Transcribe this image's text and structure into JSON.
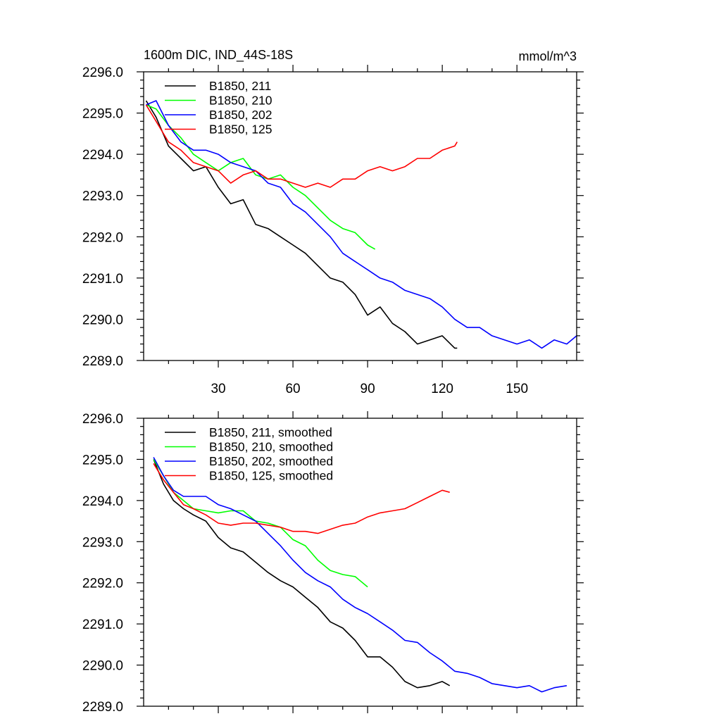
{
  "header": {
    "title": "1600m DIC, IND_44S-18S",
    "units": "mmol/m^3"
  },
  "chart_data": [
    {
      "type": "line",
      "xlim": [
        0,
        174
      ],
      "ylim": [
        2289.0,
        2296.0
      ],
      "x_ticks": [
        30,
        60,
        90,
        120,
        150
      ],
      "x_tick_labels": [
        "30",
        "60",
        "90",
        "120",
        "150"
      ],
      "y_ticks": [
        2289.0,
        2290.0,
        2291.0,
        2292.0,
        2293.0,
        2294.0,
        2295.0,
        2296.0
      ],
      "y_tick_labels": [
        "2289.0",
        "2290.0",
        "2291.0",
        "2292.0",
        "2293.0",
        "2294.0",
        "2295.0",
        "2296.0"
      ],
      "legend_position": "top-left",
      "series": [
        {
          "name": "B1850, 211",
          "color": "#000000",
          "x": [
            1,
            5,
            10,
            15,
            20,
            25,
            30,
            35,
            40,
            45,
            50,
            55,
            60,
            65,
            70,
            75,
            80,
            85,
            90,
            95,
            100,
            105,
            110,
            115,
            120,
            125,
            126
          ],
          "y": [
            2295.3,
            2294.9,
            2294.2,
            2293.9,
            2293.6,
            2293.7,
            2293.2,
            2292.8,
            2292.9,
            2292.3,
            2292.2,
            2292.0,
            2291.8,
            2291.6,
            2291.3,
            2291.0,
            2290.9,
            2290.6,
            2290.1,
            2290.3,
            2289.9,
            2289.7,
            2289.4,
            2289.5,
            2289.6,
            2289.3,
            2289.3
          ]
        },
        {
          "name": "B1850, 210",
          "color": "#00ff00",
          "x": [
            1,
            5,
            10,
            15,
            20,
            25,
            30,
            35,
            40,
            45,
            50,
            55,
            60,
            65,
            70,
            75,
            80,
            85,
            90,
            93
          ],
          "y": [
            2295.2,
            2295.1,
            2294.7,
            2294.4,
            2294.0,
            2293.8,
            2293.6,
            2293.8,
            2293.9,
            2293.5,
            2293.4,
            2293.5,
            2293.2,
            2293.0,
            2292.7,
            2292.4,
            2292.2,
            2292.1,
            2291.8,
            2291.7
          ]
        },
        {
          "name": "B1850, 202",
          "color": "#0000ff",
          "x": [
            1,
            5,
            10,
            15,
            20,
            25,
            30,
            35,
            40,
            45,
            50,
            55,
            60,
            65,
            70,
            75,
            80,
            85,
            90,
            95,
            100,
            105,
            110,
            115,
            120,
            125,
            130,
            135,
            140,
            145,
            150,
            155,
            160,
            165,
            170,
            174
          ],
          "y": [
            2295.2,
            2295.3,
            2294.7,
            2294.3,
            2294.1,
            2294.1,
            2294.0,
            2293.8,
            2293.7,
            2293.6,
            2293.3,
            2293.2,
            2292.8,
            2292.6,
            2292.3,
            2292.0,
            2291.6,
            2291.4,
            2291.2,
            2291.0,
            2290.9,
            2290.7,
            2290.6,
            2290.5,
            2290.3,
            2290.0,
            2289.8,
            2289.8,
            2289.6,
            2289.5,
            2289.4,
            2289.5,
            2289.3,
            2289.5,
            2289.4,
            2289.6
          ]
        },
        {
          "name": "B1850, 125",
          "color": "#ff0000",
          "x": [
            1,
            5,
            10,
            15,
            20,
            25,
            30,
            35,
            40,
            45,
            50,
            55,
            60,
            65,
            70,
            75,
            80,
            85,
            90,
            95,
            100,
            105,
            110,
            115,
            120,
            125,
            126
          ],
          "y": [
            2295.2,
            2294.8,
            2294.3,
            2294.1,
            2293.8,
            2293.7,
            2293.6,
            2293.3,
            2293.5,
            2293.6,
            2293.4,
            2293.4,
            2293.3,
            2293.2,
            2293.3,
            2293.2,
            2293.4,
            2293.4,
            2293.6,
            2293.7,
            2293.6,
            2293.7,
            2293.9,
            2293.9,
            2294.1,
            2294.2,
            2294.3
          ]
        }
      ]
    },
    {
      "type": "line",
      "xlim": [
        0,
        174
      ],
      "ylim": [
        2289.0,
        2296.0
      ],
      "y_ticks": [
        2289.0,
        2290.0,
        2291.0,
        2292.0,
        2293.0,
        2294.0,
        2295.0,
        2296.0
      ],
      "y_tick_labels": [
        "2289.0",
        "2290.0",
        "2291.0",
        "2292.0",
        "2293.0",
        "2294.0",
        "2295.0",
        "2296.0"
      ],
      "legend_position": "top-left",
      "series": [
        {
          "name": "B1850, 211, smoothed",
          "color": "#000000",
          "x": [
            4,
            8,
            12,
            16,
            20,
            25,
            30,
            35,
            40,
            45,
            50,
            55,
            60,
            65,
            70,
            75,
            80,
            85,
            90,
            95,
            100,
            105,
            110,
            115,
            120,
            123
          ],
          "y": [
            2295.0,
            2294.4,
            2294.0,
            2293.8,
            2293.65,
            2293.5,
            2293.1,
            2292.85,
            2292.75,
            2292.5,
            2292.25,
            2292.05,
            2291.9,
            2291.65,
            2291.4,
            2291.05,
            2290.9,
            2290.6,
            2290.2,
            2290.2,
            2289.95,
            2289.6,
            2289.45,
            2289.5,
            2289.6,
            2289.5
          ]
        },
        {
          "name": "B1850, 210, smoothed",
          "color": "#00ff00",
          "x": [
            4,
            8,
            12,
            16,
            20,
            25,
            30,
            35,
            40,
            45,
            50,
            55,
            60,
            65,
            70,
            75,
            80,
            85,
            90
          ],
          "y": [
            2295.0,
            2294.6,
            2294.2,
            2294.0,
            2293.8,
            2293.75,
            2293.7,
            2293.75,
            2293.75,
            2293.5,
            2293.45,
            2293.35,
            2293.05,
            2292.9,
            2292.55,
            2292.3,
            2292.2,
            2292.15,
            2291.9
          ]
        },
        {
          "name": "B1850, 202, smoothed",
          "color": "#0000ff",
          "x": [
            4,
            8,
            12,
            16,
            20,
            25,
            30,
            35,
            40,
            45,
            50,
            55,
            60,
            65,
            70,
            75,
            80,
            85,
            90,
            95,
            100,
            105,
            110,
            115,
            120,
            125,
            130,
            135,
            140,
            145,
            150,
            155,
            160,
            165,
            170
          ],
          "y": [
            2295.05,
            2294.6,
            2294.25,
            2294.1,
            2294.1,
            2294.1,
            2293.9,
            2293.8,
            2293.65,
            2293.5,
            2293.2,
            2292.9,
            2292.55,
            2292.25,
            2292.05,
            2291.9,
            2291.6,
            2291.4,
            2291.25,
            2291.05,
            2290.85,
            2290.6,
            2290.55,
            2290.3,
            2290.1,
            2289.85,
            2289.8,
            2289.7,
            2289.55,
            2289.5,
            2289.45,
            2289.5,
            2289.35,
            2289.45,
            2289.5
          ]
        },
        {
          "name": "B1850, 125, smoothed",
          "color": "#ff0000",
          "x": [
            4,
            8,
            12,
            16,
            20,
            25,
            30,
            35,
            40,
            45,
            50,
            55,
            60,
            65,
            70,
            75,
            80,
            85,
            90,
            95,
            100,
            105,
            110,
            115,
            120,
            123
          ],
          "y": [
            2294.9,
            2294.5,
            2294.2,
            2293.9,
            2293.8,
            2293.65,
            2293.45,
            2293.4,
            2293.45,
            2293.45,
            2293.4,
            2293.35,
            2293.25,
            2293.25,
            2293.2,
            2293.3,
            2293.4,
            2293.45,
            2293.6,
            2293.7,
            2293.75,
            2293.8,
            2293.95,
            2294.1,
            2294.25,
            2294.2
          ]
        }
      ]
    }
  ]
}
